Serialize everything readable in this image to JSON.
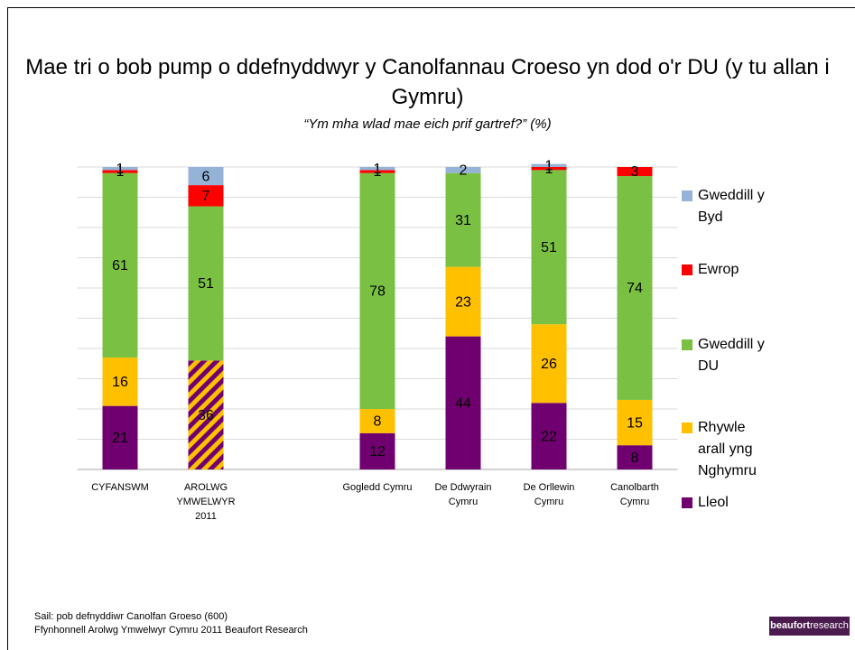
{
  "chart_data": {
    "type": "stacked_bar",
    "title": "Mae tri o bob pump o ddefnyddwyr y Canolfannau Croeso yn dod o'r DU (y tu allan i Gymru)",
    "subtitle": "“Ym mha wlad mae eich prif gartref?” (%)",
    "categories": [
      "CYFANSWM",
      "AROLWG YMWELWYR 2011",
      null,
      "Gogledd Cymru",
      "De Ddwyrain Cymru",
      "De Orllewin Cymru",
      "Canolbarth Cymru"
    ],
    "series": [
      {
        "name": "Lleol",
        "color": "#700070",
        "values": [
          21,
          36,
          null,
          12,
          44,
          22,
          8
        ]
      },
      {
        "name": "Rhywle arall yng Nghymru",
        "color": "#ffc000",
        "values": [
          16,
          null,
          null,
          8,
          23,
          26,
          15
        ]
      },
      {
        "name": "Gweddill y DU",
        "color": "#7ac143",
        "values": [
          61,
          51,
          null,
          78,
          31,
          51,
          74
        ]
      },
      {
        "name": "Ewrop",
        "color": "#ff0000",
        "values": [
          1,
          7,
          null,
          1,
          null,
          1,
          3
        ]
      },
      {
        "name": "Gweddill y Byd",
        "color": "#95b3d7",
        "values": [
          1,
          6,
          null,
          1,
          2,
          1,
          null
        ]
      }
    ],
    "ylim": [
      0,
      100
    ],
    "yticks": [
      0,
      10,
      20,
      30,
      40,
      50,
      60,
      70,
      80,
      90,
      100
    ],
    "grid": true,
    "legend": "right"
  },
  "footer": {
    "notes": [
      "Sail: pob defnyddiwr Canolfan Groeso (600)",
      "Ffynhonnell Arolwg Ymwelwyr Cymru 2011 Beaufort Research"
    ],
    "logo": [
      "beaufort",
      "research"
    ]
  }
}
